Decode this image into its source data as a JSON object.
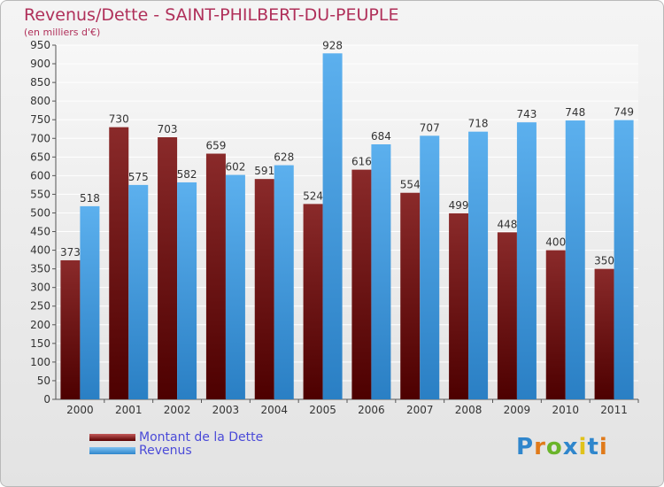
{
  "title": "Revenus/Dette - SAINT-PHILBERT-DU-PEUPLE",
  "subtitle": "(en milliers d'€)",
  "colors": {
    "dette": "#7b1a1a",
    "revenus": "#4aa3e6",
    "title": "#b0305a",
    "legend_text": "#4a4ad8"
  },
  "chart_data": {
    "type": "bar",
    "title": "Revenus/Dette - SAINT-PHILBERT-DU-PEUPLE",
    "ylabel": "(en milliers d'€)",
    "ylim": [
      0,
      950
    ],
    "yticks": [
      0,
      50,
      100,
      150,
      200,
      250,
      300,
      350,
      400,
      450,
      500,
      550,
      600,
      650,
      700,
      750,
      800,
      850,
      900,
      950
    ],
    "grid": true,
    "legend_position": "bottom-left",
    "categories": [
      "2000",
      "2001",
      "2002",
      "2003",
      "2004",
      "2005",
      "2006",
      "2007",
      "2008",
      "2009",
      "2010",
      "2011"
    ],
    "series": [
      {
        "name": "Montant de la Dette",
        "values": [
          373,
          730,
          703,
          659,
          591,
          524,
          616,
          554,
          499,
          448,
          400,
          350
        ]
      },
      {
        "name": "Revenus",
        "values": [
          518,
          575,
          582,
          602,
          628,
          928,
          684,
          707,
          718,
          743,
          748,
          749
        ]
      }
    ]
  },
  "legend": {
    "items": [
      "Montant de la Dette",
      "Revenus"
    ]
  },
  "logo": {
    "text": "Proxiti"
  }
}
